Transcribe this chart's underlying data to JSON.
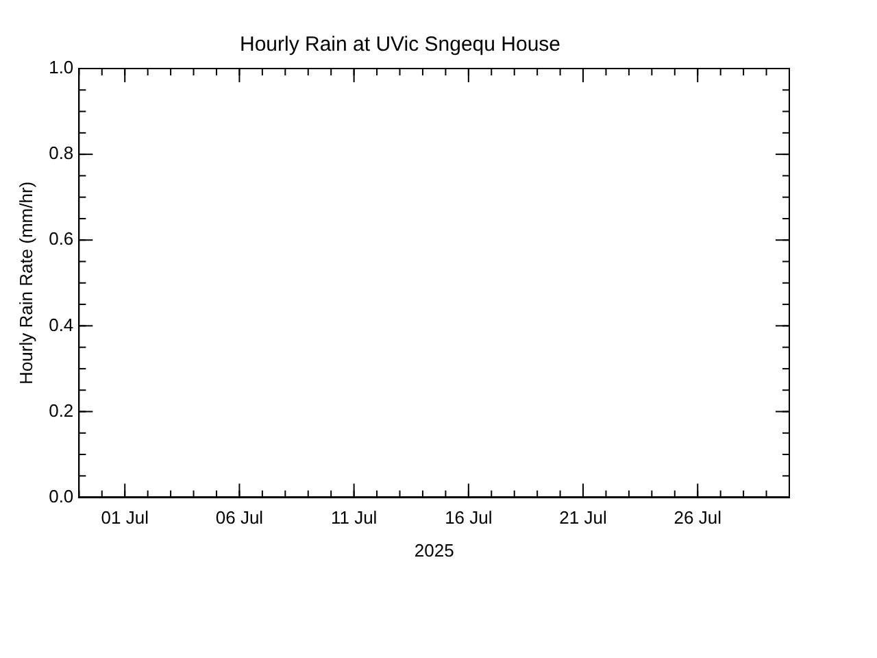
{
  "chart_data": {
    "type": "line",
    "title": "Hourly Rain at UVic Sngequ House",
    "xlabel": "2025",
    "ylabel": "Hourly Rain Rate (mm/hr)",
    "x": [
      "2025-06-29",
      "2025-06-30",
      "2025-07-01",
      "2025-07-02",
      "2025-07-03",
      "2025-07-04",
      "2025-07-05",
      "2025-07-06",
      "2025-07-07",
      "2025-07-08",
      "2025-07-09",
      "2025-07-10",
      "2025-07-11",
      "2025-07-12",
      "2025-07-13",
      "2025-07-14",
      "2025-07-15",
      "2025-07-16",
      "2025-07-17",
      "2025-07-18",
      "2025-07-19",
      "2025-07-20",
      "2025-07-21",
      "2025-07-22",
      "2025-07-23",
      "2025-07-24",
      "2025-07-25",
      "2025-07-26",
      "2025-07-27",
      "2025-07-28",
      "2025-07-29",
      "2025-07-30"
    ],
    "series": [
      {
        "color": "#000000",
        "values": [
          0,
          0,
          0,
          0,
          0,
          0,
          0,
          0,
          0,
          0,
          0,
          0,
          0,
          0,
          0,
          0,
          0,
          0,
          0,
          0,
          0,
          0,
          0,
          0,
          0,
          0,
          0,
          0,
          0,
          0,
          0,
          0
        ]
      }
    ],
    "xlim": [
      "2025-06-29",
      "2025-07-30"
    ],
    "xticks": [
      {
        "value": "2025-07-01",
        "label": "01 Jul"
      },
      {
        "value": "2025-07-06",
        "label": "06 Jul"
      },
      {
        "value": "2025-07-11",
        "label": "11 Jul"
      },
      {
        "value": "2025-07-16",
        "label": "16 Jul"
      },
      {
        "value": "2025-07-21",
        "label": "21 Jul"
      },
      {
        "value": "2025-07-26",
        "label": "26 Jul"
      }
    ],
    "ylim": [
      0,
      1
    ],
    "yticks": [
      {
        "value": 0,
        "label": "0.0"
      },
      {
        "value": 0.2,
        "label": "0.2"
      },
      {
        "value": 0.4,
        "label": "0.4"
      },
      {
        "value": 0.6,
        "label": "0.6"
      },
      {
        "value": 0.8,
        "label": "0.8"
      },
      {
        "value": 1,
        "label": "1.0"
      }
    ],
    "grid": false,
    "legend": false,
    "marker": "none",
    "line_style": "solid"
  }
}
